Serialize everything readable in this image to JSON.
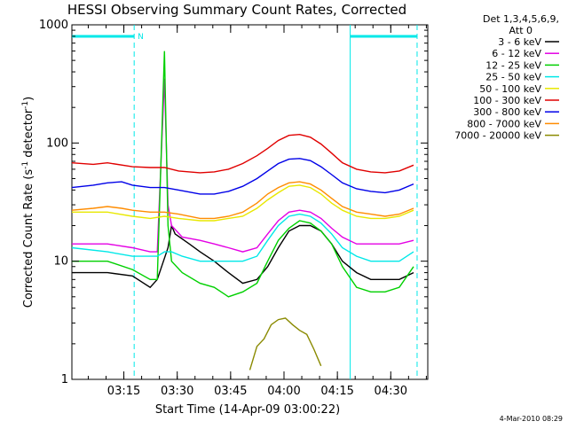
{
  "chart_data": {
    "type": "line",
    "title": "HESSI Observing Summary Count Rates, Corrected",
    "xlabel": "Start Time (14-Apr-09 03:00:22)",
    "ylabel_parts": {
      "prefix": "Corrected Count Rate (s",
      "exp1": "-1",
      "middle": " detector",
      "exp2": "-1",
      "suffix": ")"
    },
    "yscale": "log",
    "ylim": [
      1,
      1000
    ],
    "xlim_minutes": [
      0,
      100
    ],
    "x_unit": "minutes after 03:00:22",
    "y_ticks": [
      {
        "value": 1,
        "label": "1"
      },
      {
        "value": 10,
        "label": "10"
      },
      {
        "value": 100,
        "label": "100"
      },
      {
        "value": 1000,
        "label": "1000"
      }
    ],
    "x_ticks": [
      {
        "value": 14.6,
        "label": "03:15"
      },
      {
        "value": 29.6,
        "label": "03:30"
      },
      {
        "value": 44.6,
        "label": "03:45"
      },
      {
        "value": 59.6,
        "label": "04:00"
      },
      {
        "value": 74.6,
        "label": "04:15"
      },
      {
        "value": 89.6,
        "label": "04:30"
      }
    ],
    "legend_header": [
      "Det 1,3,4,5,6,9,",
      "Att 0"
    ],
    "night_marker_label": "N",
    "night_intervals": [
      [
        0,
        17.5
      ],
      [
        78.2,
        97
      ]
    ],
    "series": [
      {
        "name": "3 - 6 keV",
        "color": "#000000",
        "values": [
          [
            0,
            8
          ],
          [
            10,
            8
          ],
          [
            17,
            7.5
          ],
          [
            22,
            6
          ],
          [
            24,
            7
          ],
          [
            27,
            13
          ],
          [
            28,
            20
          ],
          [
            29,
            17
          ],
          [
            33,
            14
          ],
          [
            36,
            12
          ],
          [
            40,
            10
          ],
          [
            44,
            8
          ],
          [
            48,
            6.5
          ],
          [
            52,
            7
          ],
          [
            55,
            9
          ],
          [
            58,
            13
          ],
          [
            61,
            18
          ],
          [
            64,
            20
          ],
          [
            67,
            20
          ],
          [
            70,
            18
          ],
          [
            73,
            14
          ],
          [
            76,
            10
          ],
          [
            80,
            8
          ],
          [
            84,
            7
          ],
          [
            88,
            7
          ],
          [
            92,
            7
          ],
          [
            96,
            8
          ]
        ]
      },
      {
        "name": "6 - 12 keV",
        "color": "#e400e4",
        "values": [
          [
            0,
            14
          ],
          [
            10,
            14
          ],
          [
            17,
            13
          ],
          [
            22,
            12
          ],
          [
            24,
            12
          ],
          [
            26,
            350
          ],
          [
            27,
            30
          ],
          [
            28,
            20
          ],
          [
            31,
            16
          ],
          [
            36,
            15
          ],
          [
            40,
            14
          ],
          [
            44,
            13
          ],
          [
            48,
            12
          ],
          [
            52,
            13
          ],
          [
            55,
            17
          ],
          [
            58,
            22
          ],
          [
            61,
            26
          ],
          [
            64,
            27
          ],
          [
            67,
            26
          ],
          [
            70,
            23
          ],
          [
            73,
            19
          ],
          [
            76,
            16
          ],
          [
            80,
            14
          ],
          [
            84,
            14
          ],
          [
            88,
            14
          ],
          [
            92,
            14
          ],
          [
            96,
            15
          ]
        ]
      },
      {
        "name": "12 - 25 keV",
        "color": "#00d000",
        "values": [
          [
            0,
            10
          ],
          [
            10,
            10
          ],
          [
            17,
            8.5
          ],
          [
            22,
            7
          ],
          [
            24,
            7
          ],
          [
            26,
            600
          ],
          [
            27,
            20
          ],
          [
            28,
            10
          ],
          [
            31,
            8
          ],
          [
            36,
            6.5
          ],
          [
            40,
            6
          ],
          [
            44,
            5
          ],
          [
            48,
            5.5
          ],
          [
            52,
            6.5
          ],
          [
            55,
            10
          ],
          [
            58,
            15
          ],
          [
            61,
            19
          ],
          [
            64,
            22
          ],
          [
            67,
            21
          ],
          [
            70,
            18
          ],
          [
            73,
            14
          ],
          [
            76,
            9
          ],
          [
            80,
            6
          ],
          [
            84,
            5.5
          ],
          [
            88,
            5.5
          ],
          [
            92,
            6
          ],
          [
            96,
            9
          ]
        ]
      },
      {
        "name": "25 - 50 keV",
        "color": "#00e8e8",
        "values": [
          [
            0,
            13
          ],
          [
            10,
            12
          ],
          [
            17,
            11
          ],
          [
            22,
            11
          ],
          [
            24,
            11
          ],
          [
            26,
            12
          ],
          [
            28,
            12
          ],
          [
            31,
            11
          ],
          [
            36,
            10
          ],
          [
            40,
            10
          ],
          [
            44,
            10
          ],
          [
            48,
            10
          ],
          [
            52,
            11
          ],
          [
            55,
            15
          ],
          [
            58,
            20
          ],
          [
            61,
            24
          ],
          [
            64,
            25
          ],
          [
            67,
            24
          ],
          [
            70,
            21
          ],
          [
            73,
            17
          ],
          [
            76,
            13
          ],
          [
            80,
            11
          ],
          [
            84,
            10
          ],
          [
            88,
            10
          ],
          [
            92,
            10
          ],
          [
            96,
            12
          ]
        ]
      },
      {
        "name": "50 - 100 keV",
        "color": "#e8e800",
        "values": [
          [
            0,
            26
          ],
          [
            10,
            26
          ],
          [
            17,
            24
          ],
          [
            22,
            23
          ],
          [
            26,
            24
          ],
          [
            30,
            23
          ],
          [
            36,
            22
          ],
          [
            40,
            22
          ],
          [
            44,
            23
          ],
          [
            48,
            24
          ],
          [
            52,
            28
          ],
          [
            55,
            33
          ],
          [
            58,
            38
          ],
          [
            61,
            43
          ],
          [
            64,
            44
          ],
          [
            67,
            42
          ],
          [
            70,
            37
          ],
          [
            73,
            31
          ],
          [
            76,
            27
          ],
          [
            80,
            24
          ],
          [
            84,
            23
          ],
          [
            88,
            23
          ],
          [
            92,
            24
          ],
          [
            96,
            27
          ]
        ]
      },
      {
        "name": "100 - 300 keV",
        "color": "#e00000",
        "values": [
          [
            0,
            68
          ],
          [
            6,
            66
          ],
          [
            10,
            68
          ],
          [
            17,
            63
          ],
          [
            22,
            62
          ],
          [
            26,
            62
          ],
          [
            30,
            58
          ],
          [
            36,
            56
          ],
          [
            40,
            57
          ],
          [
            44,
            60
          ],
          [
            48,
            67
          ],
          [
            52,
            78
          ],
          [
            55,
            90
          ],
          [
            58,
            105
          ],
          [
            61,
            116
          ],
          [
            64,
            118
          ],
          [
            67,
            112
          ],
          [
            70,
            98
          ],
          [
            73,
            82
          ],
          [
            76,
            68
          ],
          [
            80,
            60
          ],
          [
            84,
            57
          ],
          [
            88,
            56
          ],
          [
            92,
            58
          ],
          [
            96,
            65
          ]
        ]
      },
      {
        "name": "300 - 800 keV",
        "color": "#0000e8",
        "values": [
          [
            0,
            42
          ],
          [
            6,
            44
          ],
          [
            10,
            46
          ],
          [
            14,
            47
          ],
          [
            17,
            44
          ],
          [
            22,
            42
          ],
          [
            26,
            42
          ],
          [
            30,
            40
          ],
          [
            36,
            37
          ],
          [
            40,
            37
          ],
          [
            44,
            39
          ],
          [
            48,
            43
          ],
          [
            52,
            50
          ],
          [
            55,
            58
          ],
          [
            58,
            67
          ],
          [
            61,
            73
          ],
          [
            64,
            74
          ],
          [
            67,
            71
          ],
          [
            70,
            63
          ],
          [
            73,
            54
          ],
          [
            76,
            46
          ],
          [
            80,
            41
          ],
          [
            84,
            39
          ],
          [
            88,
            38
          ],
          [
            92,
            40
          ],
          [
            96,
            45
          ]
        ]
      },
      {
        "name": "800 - 7000 keV",
        "color": "#ff8c00",
        "values": [
          [
            0,
            27
          ],
          [
            6,
            28
          ],
          [
            10,
            29
          ],
          [
            14,
            28
          ],
          [
            17,
            27
          ],
          [
            22,
            26
          ],
          [
            26,
            26
          ],
          [
            30,
            25
          ],
          [
            36,
            23
          ],
          [
            40,
            23
          ],
          [
            44,
            24
          ],
          [
            48,
            26
          ],
          [
            52,
            31
          ],
          [
            55,
            37
          ],
          [
            58,
            42
          ],
          [
            61,
            46
          ],
          [
            64,
            47
          ],
          [
            67,
            45
          ],
          [
            70,
            40
          ],
          [
            73,
            34
          ],
          [
            76,
            29
          ],
          [
            80,
            26
          ],
          [
            84,
            25
          ],
          [
            88,
            24
          ],
          [
            92,
            25
          ],
          [
            96,
            28
          ]
        ]
      },
      {
        "name": "7000 - 20000 keV",
        "color": "#8a8a00",
        "values": [
          [
            50,
            1.2
          ],
          [
            52,
            1.9
          ],
          [
            54,
            2.2
          ],
          [
            56,
            2.9
          ],
          [
            58,
            3.2
          ],
          [
            60,
            3.3
          ],
          [
            62,
            2.9
          ],
          [
            64,
            2.6
          ],
          [
            66,
            2.4
          ],
          [
            68,
            1.8
          ],
          [
            70,
            1.3
          ]
        ]
      }
    ],
    "legend_position": "right",
    "grid": false
  },
  "timestamp": "4-Mar-2010 08:29"
}
